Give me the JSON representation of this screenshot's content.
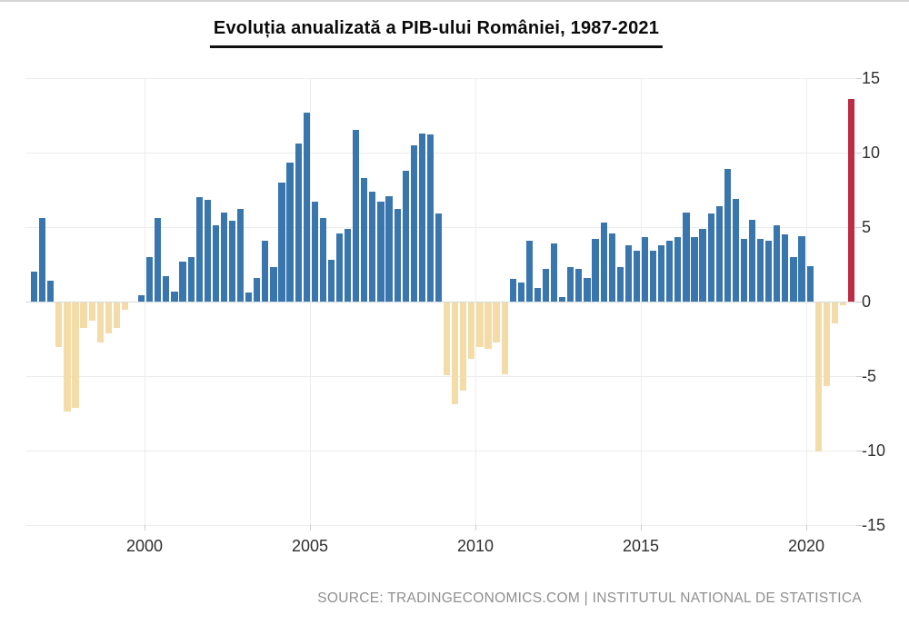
{
  "title": {
    "text": "Evoluția anualizată a PIB-ului României, 1987-2021"
  },
  "source": {
    "text": "SOURCE: TRADINGECONOMICS.COM | INSTITUTUL NATIONAL DE STATISTICA"
  },
  "axes": {
    "y_tick_labels": [
      "15",
      "10",
      "5",
      "0",
      "-5",
      "-10",
      "-15"
    ],
    "x_tick_labels": [
      "2000",
      "2005",
      "2010",
      "2015",
      "2020"
    ]
  },
  "chart_data": {
    "type": "bar",
    "title": "Evoluția anualizată a PIB-ului României, 1987-2021",
    "subtitle": "",
    "xlabel": "",
    "ylabel": "",
    "frequency": "quarterly",
    "visible_range": "1996-Q3 to 2021-Q2",
    "ylim": [
      -15,
      15
    ],
    "y_ticks": [
      15,
      10,
      5,
      0,
      -5,
      -10,
      -15
    ],
    "x_ticks": [
      2000,
      2005,
      2010,
      2015,
      2020
    ],
    "grid": true,
    "legend": "none",
    "colors": {
      "positive": "#3a76ae",
      "negative": "#f4dca8",
      "latest": "#be2b44",
      "gridline": "#ececec",
      "zero_line": "#d9d9d9",
      "axis_text": "#2f2f2f",
      "source_text": "#8f8f8f"
    },
    "latest_bar_index": 99,
    "periods": [
      "1996-Q3",
      "1996-Q4",
      "1997-Q1",
      "1997-Q2",
      "1997-Q3",
      "1997-Q4",
      "1998-Q1",
      "1998-Q2",
      "1998-Q3",
      "1998-Q4",
      "1999-Q1",
      "1999-Q2",
      "1999-Q3",
      "1999-Q4",
      "2000-Q1",
      "2000-Q2",
      "2000-Q3",
      "2000-Q4",
      "2001-Q1",
      "2001-Q2",
      "2001-Q3",
      "2001-Q4",
      "2002-Q1",
      "2002-Q2",
      "2002-Q3",
      "2002-Q4",
      "2003-Q1",
      "2003-Q2",
      "2003-Q3",
      "2003-Q4",
      "2004-Q1",
      "2004-Q2",
      "2004-Q3",
      "2004-Q4",
      "2005-Q1",
      "2005-Q2",
      "2005-Q3",
      "2005-Q4",
      "2006-Q1",
      "2006-Q2",
      "2006-Q3",
      "2006-Q4",
      "2007-Q1",
      "2007-Q2",
      "2007-Q3",
      "2007-Q4",
      "2008-Q1",
      "2008-Q2",
      "2008-Q3",
      "2008-Q4",
      "2009-Q1",
      "2009-Q2",
      "2009-Q3",
      "2009-Q4",
      "2010-Q1",
      "2010-Q2",
      "2010-Q3",
      "2010-Q4",
      "2011-Q1",
      "2011-Q2",
      "2011-Q3",
      "2011-Q4",
      "2012-Q1",
      "2012-Q2",
      "2012-Q3",
      "2012-Q4",
      "2013-Q1",
      "2013-Q2",
      "2013-Q3",
      "2013-Q4",
      "2014-Q1",
      "2014-Q2",
      "2014-Q3",
      "2014-Q4",
      "2015-Q1",
      "2015-Q2",
      "2015-Q3",
      "2015-Q4",
      "2016-Q1",
      "2016-Q2",
      "2016-Q3",
      "2016-Q4",
      "2017-Q1",
      "2017-Q2",
      "2017-Q3",
      "2017-Q4",
      "2018-Q1",
      "2018-Q2",
      "2018-Q3",
      "2018-Q4",
      "2019-Q1",
      "2019-Q2",
      "2019-Q3",
      "2019-Q4",
      "2020-Q1",
      "2020-Q2",
      "2020-Q3",
      "2020-Q4",
      "2021-Q1",
      "2021-Q2"
    ],
    "values": [
      2.0,
      5.6,
      1.4,
      -3.0,
      -7.3,
      -7.1,
      -1.7,
      -1.2,
      -2.7,
      -2.1,
      -1.7,
      -0.5,
      0.0,
      0.4,
      3.0,
      5.6,
      1.7,
      0.7,
      2.7,
      3.0,
      7.0,
      6.8,
      5.1,
      6.0,
      5.4,
      6.2,
      0.6,
      1.6,
      4.1,
      2.3,
      8.0,
      9.3,
      10.6,
      12.7,
      6.7,
      5.6,
      2.8,
      4.6,
      4.9,
      11.5,
      8.3,
      7.4,
      6.7,
      7.1,
      6.2,
      8.8,
      10.5,
      11.3,
      11.2,
      5.9,
      -4.9,
      -6.8,
      -5.9,
      -3.8,
      -3.0,
      -3.1,
      -2.7,
      -4.8,
      1.5,
      1.3,
      4.1,
      0.9,
      2.2,
      3.9,
      0.3,
      2.3,
      2.2,
      1.6,
      4.2,
      5.3,
      4.6,
      2.3,
      3.8,
      3.4,
      4.3,
      3.4,
      3.8,
      4.1,
      4.3,
      6.0,
      4.3,
      4.9,
      5.9,
      6.4,
      8.9,
      6.9,
      4.2,
      5.5,
      4.2,
      4.1,
      5.1,
      4.5,
      3.0,
      4.4,
      2.4,
      -10.0,
      -5.6,
      -1.4,
      -0.2,
      13.6
    ]
  }
}
